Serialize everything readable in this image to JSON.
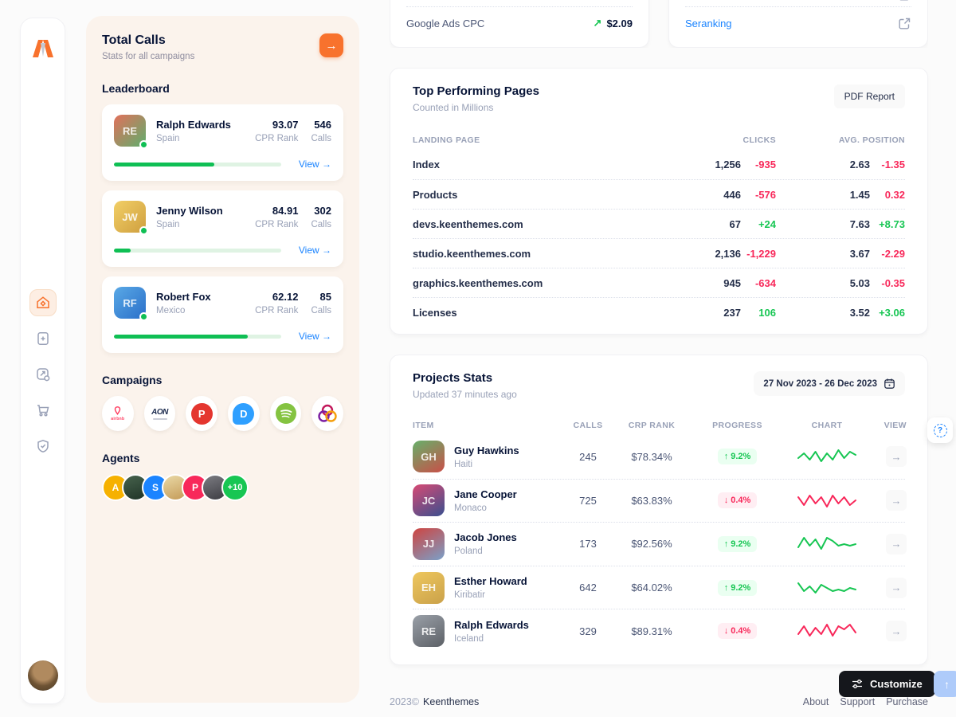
{
  "colors": {
    "accent_orange": "#F8722D",
    "green": "#17C653",
    "red": "#F8285A",
    "blue_link": "#1B84FF"
  },
  "sidebar": {
    "icons": [
      "home",
      "file-plus",
      "chart-gear",
      "cart",
      "shield-check"
    ],
    "active_icon": "home"
  },
  "calls_panel": {
    "title": "Total Calls",
    "subtitle": "Stats for all campaigns",
    "leaderboard": {
      "heading": "Leaderboard",
      "view_label": "View →",
      "rank_label": "CPR Rank",
      "calls_label": "Calls",
      "entries": [
        {
          "name": "Ralph Edwards",
          "country": "Spain",
          "initials": "RE",
          "rank": "93.07",
          "calls": "546",
          "progress_pct": 60
        },
        {
          "name": "Jenny Wilson",
          "country": "Spain",
          "initials": "JW",
          "rank": "84.91",
          "calls": "302",
          "progress_pct": 10
        },
        {
          "name": "Robert Fox",
          "country": "Mexico",
          "initials": "RF",
          "rank": "62.12",
          "calls": "85",
          "progress_pct": 80
        }
      ]
    },
    "campaigns": {
      "heading": "Campaigns",
      "logos": [
        "airbnb",
        "AON",
        "Picsart",
        "Disqus",
        "Spotify",
        "Trefoil"
      ],
      "airbnb_label": "airbnb",
      "aon_label": "AON",
      "picsart_letter": "P",
      "disqus_letter": "D"
    },
    "agents": {
      "heading": "Agents",
      "initial_badges": [
        "A",
        "S",
        "P"
      ],
      "more_label": "+10"
    }
  },
  "top_cards": {
    "ads_row": {
      "label": "Google Ads CPC",
      "value": "$2.09"
    },
    "links_row": {
      "label": "Seranking"
    }
  },
  "pages_card": {
    "title": "Top Performing Pages",
    "subtitle": "Counted in Millions",
    "report_button": "PDF Report",
    "columns": {
      "page": "LANDING PAGE",
      "clicks": "CLICKS",
      "position": "AVG. POSITION"
    },
    "rows": [
      {
        "page": "Index",
        "clicks": "1,256",
        "clicks_delta": "-935",
        "position": "2.63",
        "position_delta": "-1.35"
      },
      {
        "page": "Products",
        "clicks": "446",
        "clicks_delta": "-576",
        "position": "1.45",
        "position_delta": "0.32"
      },
      {
        "page": "devs.keenthemes.com",
        "clicks": "67",
        "clicks_delta": "+24",
        "position": "7.63",
        "position_delta": "+8.73"
      },
      {
        "page": "studio.keenthemes.com",
        "clicks": "2,136",
        "clicks_delta": "-1,229",
        "position": "3.67",
        "position_delta": "-2.29"
      },
      {
        "page": "graphics.keenthemes.com",
        "clicks": "945",
        "clicks_delta": "-634",
        "position": "5.03",
        "position_delta": "-0.35"
      },
      {
        "page": "Licenses",
        "clicks": "237",
        "clicks_delta": "106",
        "position": "3.52",
        "position_delta": "+3.06"
      }
    ]
  },
  "projects_card": {
    "title": "Projects Stats",
    "subtitle": "Updated 37 minutes ago",
    "date_range": "27 Nov 2023 - 26 Dec 2023",
    "columns": {
      "item": "ITEM",
      "calls": "CALLS",
      "crp": "CRP RANK",
      "progress": "PROGRESS",
      "chart": "CHART",
      "view": "VIEW"
    },
    "rows": [
      {
        "name": "Guy Hawkins",
        "country": "Haiti",
        "initials": "GH",
        "calls": "245",
        "crp": "$78.34%",
        "trend": "up",
        "trend_arrow": "↑",
        "progress": "9.2%",
        "spark": [
          4,
          7,
          3,
          8,
          2,
          7,
          3,
          9,
          4,
          8,
          6
        ],
        "spark_color": "#17C653"
      },
      {
        "name": "Jane Cooper",
        "country": "Monaco",
        "initials": "JC",
        "calls": "725",
        "crp": "$63.83%",
        "trend": "down",
        "trend_arrow": "↓",
        "progress": "0.4%",
        "spark": [
          7,
          2,
          8,
          3,
          7,
          1,
          8,
          3,
          7,
          2,
          5
        ],
        "spark_color": "#F8285A"
      },
      {
        "name": "Jacob Jones",
        "country": "Poland",
        "initials": "JJ",
        "calls": "173",
        "crp": "$92.56%",
        "trend": "up",
        "trend_arrow": "↑",
        "progress": "9.2%",
        "spark": [
          3,
          9,
          4,
          8,
          2,
          9,
          7,
          4,
          5,
          4,
          5
        ],
        "spark_color": "#17C653"
      },
      {
        "name": "Esther Howard",
        "country": "Kiribatir",
        "initials": "EH",
        "calls": "642",
        "crp": "$64.02%",
        "trend": "up",
        "trend_arrow": "↑",
        "progress": "9.2%",
        "spark": [
          8,
          3,
          6,
          2,
          7,
          5,
          3,
          4,
          3,
          5,
          4
        ],
        "spark_color": "#17C653"
      },
      {
        "name": "Ralph Edwards",
        "country": "Iceland",
        "initials": "RE",
        "calls": "329",
        "crp": "$89.31%",
        "trend": "down",
        "trend_arrow": "↓",
        "progress": "0.4%",
        "spark": [
          3,
          8,
          2,
          7,
          3,
          9,
          2,
          8,
          6,
          9,
          4
        ],
        "spark_color": "#F8285A"
      }
    ]
  },
  "footer": {
    "copyright": "2023©",
    "brand": "Keenthemes",
    "links": [
      "About",
      "Support",
      "Purchase"
    ]
  },
  "floating": {
    "customize_label": "Customize"
  }
}
